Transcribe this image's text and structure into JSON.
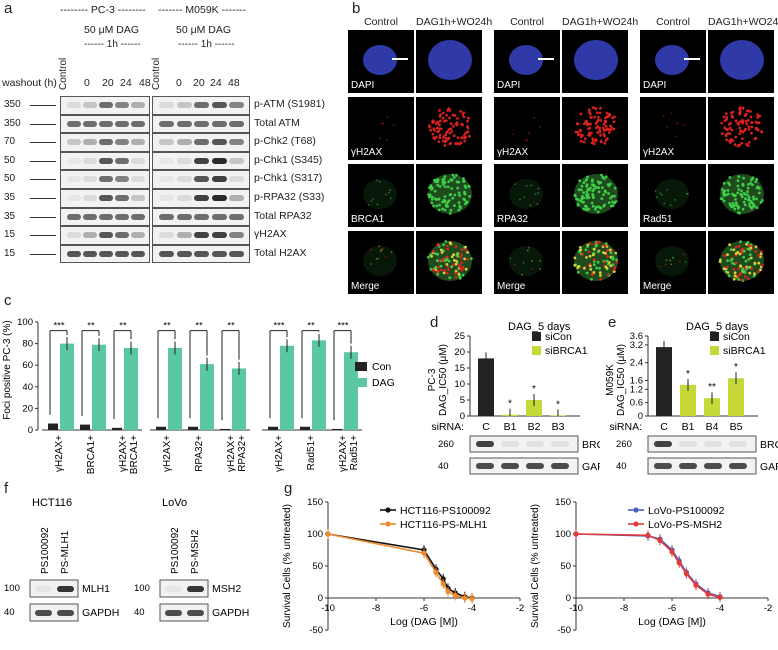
{
  "colors": {
    "con": "#222222",
    "dag": "#5bc8a3",
    "sicon": "#222222",
    "sibrca1": "#c4d83a",
    "hct_ps": "#111111",
    "hct_mlh1": "#f08a2e",
    "lovo_ps": "#4a5fc7",
    "lovo_msh2": "#e23a3a",
    "nucleus": "#2f3aa8",
    "foci_red": "#e02222",
    "foci_green": "#3fd14a"
  },
  "panel_a": {
    "label": "a",
    "group1": "-------- PC-3 --------",
    "group2": "------- M059K -------",
    "dag_conc": "50 μM DAG",
    "dag_time": "------ 1h ------",
    "control_label": "Control",
    "washout_label": "washout (h)",
    "washout_values": [
      "0",
      "20",
      "24",
      "48"
    ],
    "markers": [
      "350",
      "350",
      "70",
      "50",
      "50",
      "35",
      "35",
      "15",
      "15"
    ],
    "proteins": [
      "p-ATM (S1981)",
      "Total ATM",
      "p-Chk2 (T68)",
      "p-Chk1 (S345)",
      "p-Chk1 (S317)",
      "p-RPA32 (S33)",
      "Total RPA32",
      "γH2AX",
      "Total H2AX"
    ]
  },
  "panel_b": {
    "label": "b",
    "col_titles": [
      "Control",
      "DAG1h+WO24h",
      "Control",
      "DAG1h+WO24h",
      "Control",
      "DAG1h+WO24h"
    ],
    "row_labels": [
      [
        "DAPI",
        "DAPI",
        "DAPI"
      ],
      [
        "γH2AX",
        "γH2AX",
        "γH2AX"
      ],
      [
        "BRCA1",
        "RPA32",
        "Rad51"
      ],
      [
        "Merge",
        "Merge",
        "Merge"
      ]
    ]
  },
  "chart_data": [
    {
      "type": "bar",
      "panel": "c",
      "title": "",
      "ylabel": "Foci positive PC-3 (%)",
      "ylim": [
        0,
        100
      ],
      "yticks": [
        0,
        20,
        40,
        60,
        80,
        100
      ],
      "legend": [
        "Con",
        "DAG"
      ],
      "groups": [
        {
          "categories": [
            "γH2AX+",
            "BRCA1+",
            "γH2AX+ BRCA1+"
          ],
          "con": [
            6,
            5,
            2
          ],
          "dag": [
            80,
            79,
            76
          ],
          "sig": [
            "***",
            "**",
            "**"
          ]
        },
        {
          "categories": [
            "γH2AX+",
            "RPA32+",
            "γH2AX+ RPA32+"
          ],
          "con": [
            3,
            3,
            1
          ],
          "dag": [
            76,
            61,
            57
          ],
          "sig": [
            "**",
            "**",
            "**"
          ]
        },
        {
          "categories": [
            "γH2AX+",
            "Rad51+",
            "γH2AX+ Rad51+"
          ],
          "con": [
            3,
            3,
            1
          ],
          "dag": [
            78,
            83,
            72
          ],
          "sig": [
            "***",
            "**",
            "***"
          ]
        }
      ]
    },
    {
      "type": "bar",
      "panel": "d",
      "label": "d",
      "title": "DAG_5 days",
      "ylabel": "PC-3 DAG_IC50 (μM)",
      "ylim": [
        0,
        25
      ],
      "yticks": [
        0,
        5,
        10,
        15,
        20,
        25
      ],
      "siRNA_label": "siRNA:",
      "categories": [
        "C",
        "B1",
        "B2",
        "B3"
      ],
      "values": [
        18,
        0.4,
        5,
        0.2
      ],
      "sig": [
        "",
        "*",
        "*",
        "*"
      ],
      "legend": [
        "siCon",
        "siBRCA1"
      ],
      "blot_marker": [
        "260",
        "40"
      ],
      "blot_proteins": [
        "BRCA1",
        "GAPDH"
      ]
    },
    {
      "type": "bar",
      "panel": "e",
      "label": "e",
      "title": "DAG_5 days",
      "ylabel": "M059K DAG_IC50 (μM)",
      "ylim": [
        0,
        3.6
      ],
      "yticks": [
        "0",
        "0.6",
        "1.2",
        "1.6",
        "2.4",
        "3.2",
        "3.6"
      ],
      "siRNA_label": "siRNA:",
      "categories": [
        "C",
        "B1",
        "B4",
        "B5"
      ],
      "values": [
        3.1,
        1.4,
        0.8,
        1.7
      ],
      "sig": [
        "",
        "*",
        "**",
        "*"
      ],
      "legend": [
        "siCon",
        "siBRCA1"
      ],
      "blot_marker": [
        "260",
        "40"
      ],
      "blot_proteins": [
        "BRCA1",
        "GAPDH"
      ]
    },
    {
      "type": "line",
      "panel": "g",
      "label": "g",
      "xlabel": "Log (DAG [M])",
      "ylabel": "Survival Cells (% untreated)",
      "xlim": [
        -10,
        -2
      ],
      "ylim": [
        -50,
        150
      ],
      "xticks": [
        "-10",
        "-8",
        "-6",
        "-4",
        "-2"
      ],
      "yticks": [
        "-50",
        "0",
        "50",
        "100",
        "150"
      ],
      "series": [
        {
          "name": "HCT116-PS100092",
          "x": [
            -10,
            -6,
            -5.5,
            -5.2,
            -5,
            -4.7,
            -4.3,
            -4
          ],
          "y": [
            100,
            75,
            45,
            30,
            15,
            8,
            2,
            0
          ]
        },
        {
          "name": "HCT116-PS-MLH1",
          "x": [
            -10,
            -6,
            -5.5,
            -5.2,
            -5,
            -4.7,
            -4.3,
            -4
          ],
          "y": [
            100,
            70,
            40,
            22,
            10,
            4,
            0,
            -1
          ]
        }
      ]
    },
    {
      "type": "line",
      "panel": "g2",
      "xlabel": "Log (DAG [M])",
      "ylabel": "Survival Cells (% untreated)",
      "xlim": [
        -10,
        -2
      ],
      "ylim": [
        -50,
        150
      ],
      "xticks": [
        "-10",
        "-8",
        "-6",
        "-4",
        "-2"
      ],
      "yticks": [
        "-50",
        "0",
        "50",
        "100",
        "150"
      ],
      "series": [
        {
          "name": "LoVo-PS100092",
          "x": [
            -10,
            -7,
            -6.5,
            -6,
            -5.7,
            -5.4,
            -5,
            -4.5,
            -4
          ],
          "y": [
            100,
            97,
            92,
            75,
            58,
            40,
            22,
            8,
            2
          ]
        },
        {
          "name": "LoVo-PS-MSH2",
          "x": [
            -10,
            -7,
            -6.5,
            -6,
            -5.7,
            -5.4,
            -5,
            -4.5,
            -4
          ],
          "y": [
            100,
            98,
            90,
            72,
            55,
            38,
            20,
            6,
            1
          ]
        }
      ]
    }
  ],
  "panel_f": {
    "label": "f",
    "hct_title": "HCT116",
    "lovo_title": "LoVo",
    "hct_lanes": [
      "PS100092",
      "PS-MLH1"
    ],
    "lovo_lanes": [
      "PS100092",
      "PS-MSH2"
    ],
    "hct_markers": [
      "100",
      "40"
    ],
    "lovo_markers": [
      "100",
      "40"
    ],
    "hct_proteins": [
      "MLH1",
      "GAPDH"
    ],
    "lovo_proteins": [
      "MSH2",
      "GAPDH"
    ]
  }
}
